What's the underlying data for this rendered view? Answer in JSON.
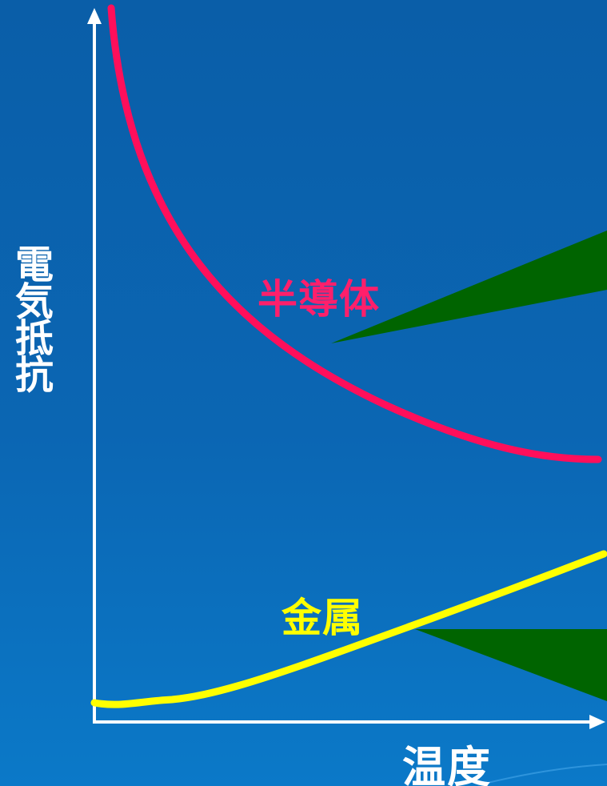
{
  "chart_data": {
    "type": "line",
    "xlabel": "温度",
    "ylabel": "電気抵抗",
    "series": [
      {
        "name": "半導体",
        "color": "#ff0f5b",
        "trend": "decreasing"
      },
      {
        "name": "金属",
        "color": "#ffff00",
        "trend": "increasing"
      }
    ],
    "axis_color": "#ffffff",
    "pointer_color": "#006400",
    "background_color": "#0b66b3",
    "grid": false
  }
}
